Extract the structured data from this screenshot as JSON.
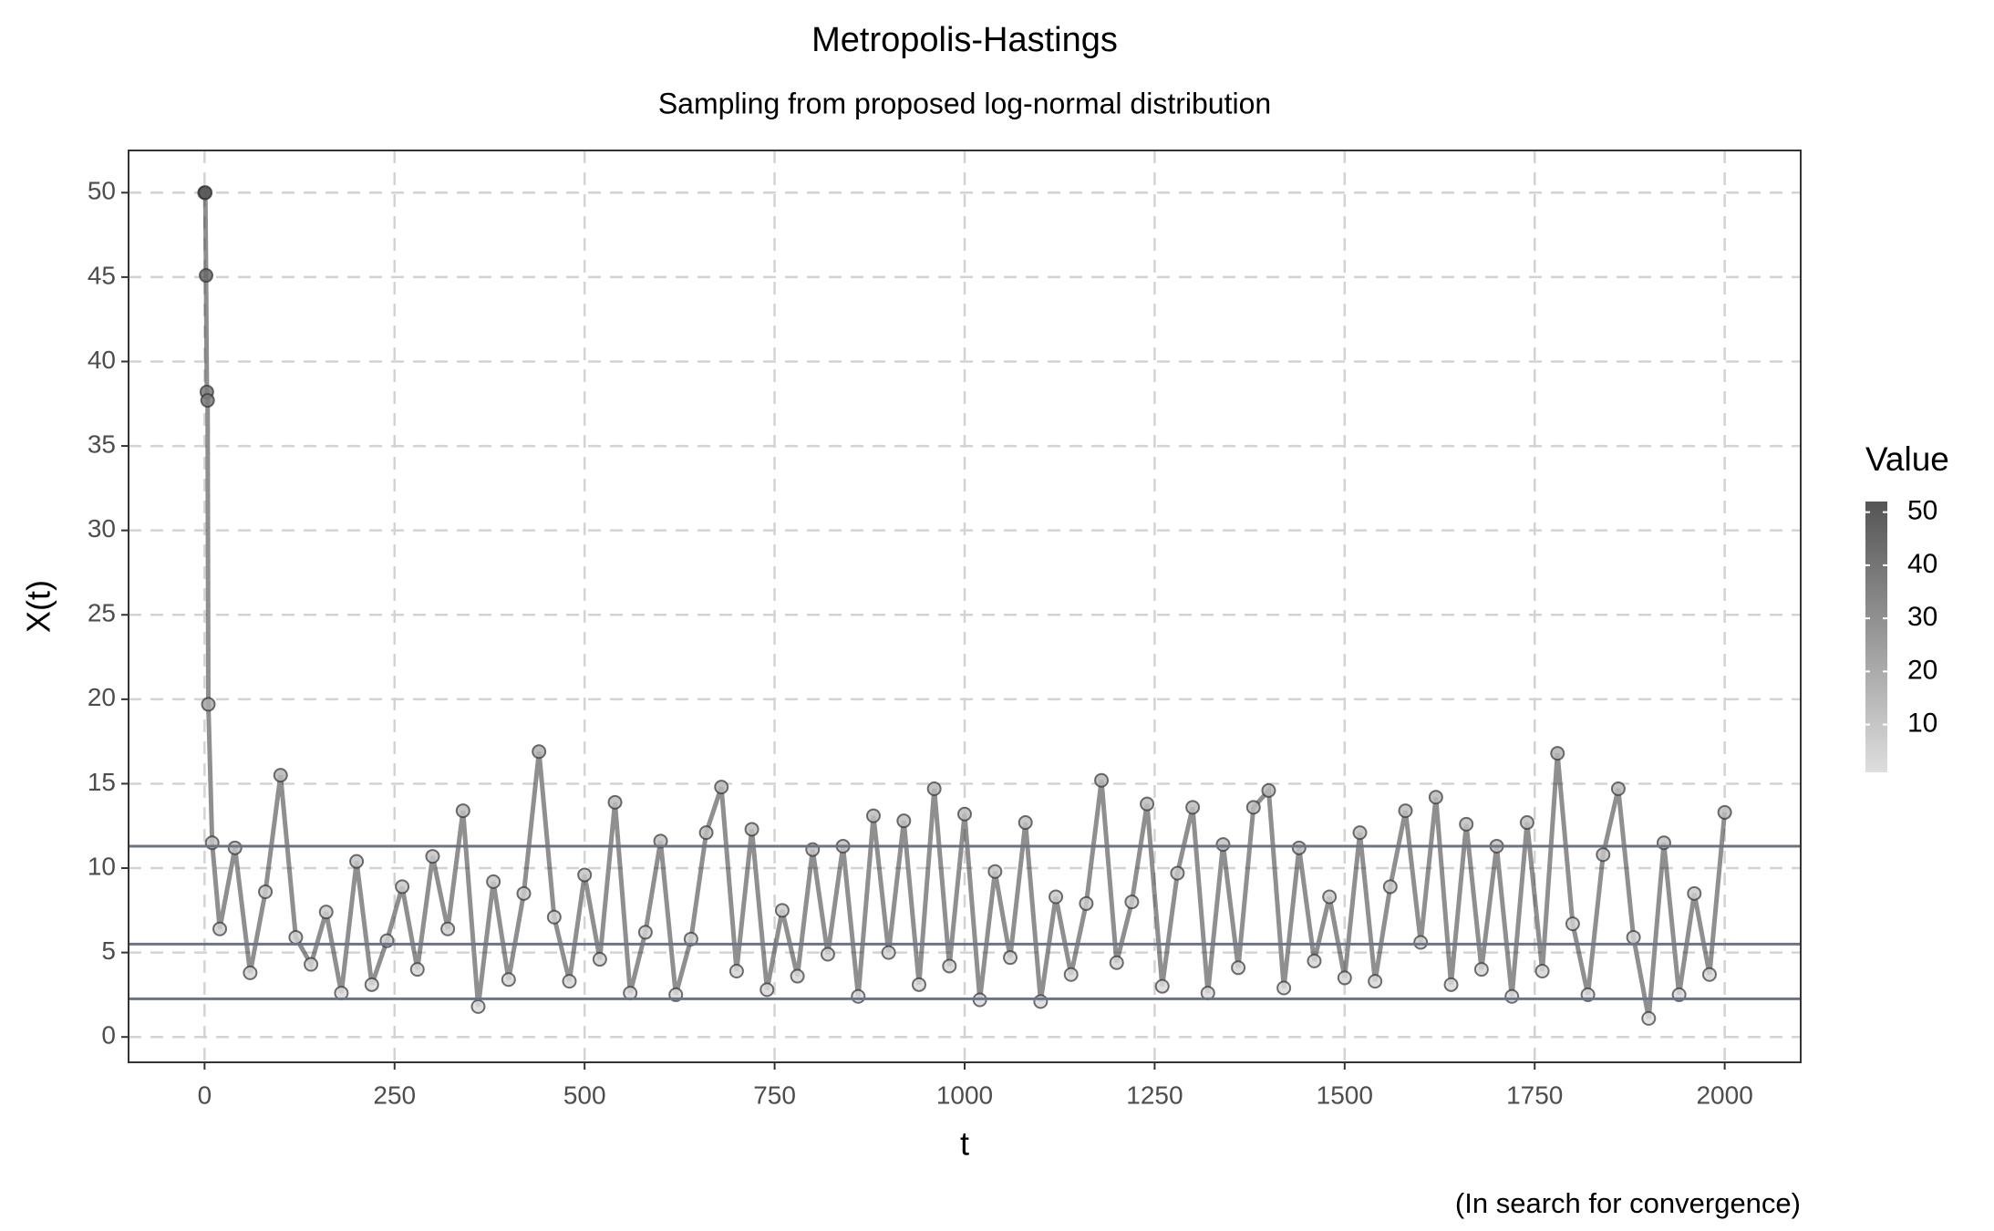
{
  "chart_data": {
    "type": "line",
    "title": "Metropolis-Hastings",
    "subtitle": "Sampling from proposed log-normal distribution",
    "x_label": "t",
    "y_label": "X(t)",
    "caption": "(In search for convergence)",
    "x": [
      0,
      1,
      2,
      3,
      4,
      5,
      10,
      20,
      40,
      60,
      80,
      100,
      120,
      140,
      160,
      180,
      200,
      220,
      240,
      260,
      280,
      300,
      320,
      340,
      360,
      380,
      400,
      420,
      440,
      460,
      480,
      500,
      520,
      540,
      560,
      580,
      600,
      620,
      640,
      660,
      680,
      700,
      720,
      740,
      760,
      780,
      800,
      820,
      840,
      860,
      880,
      900,
      920,
      940,
      960,
      980,
      1000,
      1020,
      1040,
      1060,
      1080,
      1100,
      1120,
      1140,
      1160,
      1180,
      1200,
      1220,
      1240,
      1260,
      1280,
      1300,
      1320,
      1340,
      1360,
      1380,
      1400,
      1420,
      1440,
      1460,
      1480,
      1500,
      1520,
      1540,
      1560,
      1580,
      1600,
      1620,
      1640,
      1660,
      1680,
      1700,
      1720,
      1740,
      1760,
      1780,
      1800,
      1820,
      1840,
      1860,
      1880,
      1900,
      1920,
      1940,
      1960,
      1980,
      2000
    ],
    "series": [
      {
        "color": "#333333",
        "values": [
          50,
          50,
          45.1,
          38.2,
          37.7,
          19.7,
          11.5,
          6.4,
          11.2,
          3.8,
          8.6,
          15.5,
          5.9,
          4.3,
          7.4,
          2.6,
          10.4,
          3.1,
          5.7,
          8.9,
          4.0,
          10.7,
          6.4,
          13.4,
          1.8,
          9.2,
          3.4,
          8.5,
          16.9,
          7.1,
          3.3,
          9.6,
          4.6,
          13.9,
          2.6,
          6.2,
          11.6,
          2.5,
          5.8,
          12.1,
          14.8,
          3.9,
          12.3,
          2.8,
          7.5,
          3.6,
          11.1,
          4.9,
          11.3,
          2.4,
          13.1,
          5.0,
          12.8,
          3.1,
          14.7,
          4.2,
          13.2,
          2.2,
          9.8,
          4.7,
          12.7,
          2.1,
          8.3,
          3.7,
          7.9,
          15.2,
          4.4,
          8.0,
          13.8,
          3.0,
          9.7,
          13.6,
          2.6,
          11.4,
          4.1,
          13.6,
          14.6,
          2.9,
          11.2,
          4.5,
          8.3,
          3.5,
          12.1,
          3.3,
          8.9,
          13.4,
          5.6,
          14.2,
          3.1,
          12.6,
          4.0,
          11.3,
          2.4,
          12.7,
          3.9,
          16.8,
          6.7,
          2.5,
          10.8,
          14.7,
          5.9,
          1.1,
          11.5,
          2.5,
          8.5,
          3.7,
          13.3
        ]
      }
    ],
    "hlines": [
      2.26,
      5.5,
      11.3
    ],
    "hline_color": "#6b7480",
    "color_scale": {
      "title": "Value",
      "low": "#dedede",
      "high": "#555555",
      "limits": [
        1,
        52
      ],
      "ticks": [
        10,
        20,
        30,
        40,
        50
      ]
    },
    "xlim": [
      -100,
      2100
    ],
    "ylim": [
      -1.5,
      52.5
    ],
    "xticks": [
      0,
      250,
      500,
      750,
      1000,
      1250,
      1500,
      1750,
      2000
    ],
    "yticks": [
      0,
      5,
      10,
      15,
      20,
      25,
      30,
      35,
      40,
      45,
      50
    ],
    "grid": true
  }
}
